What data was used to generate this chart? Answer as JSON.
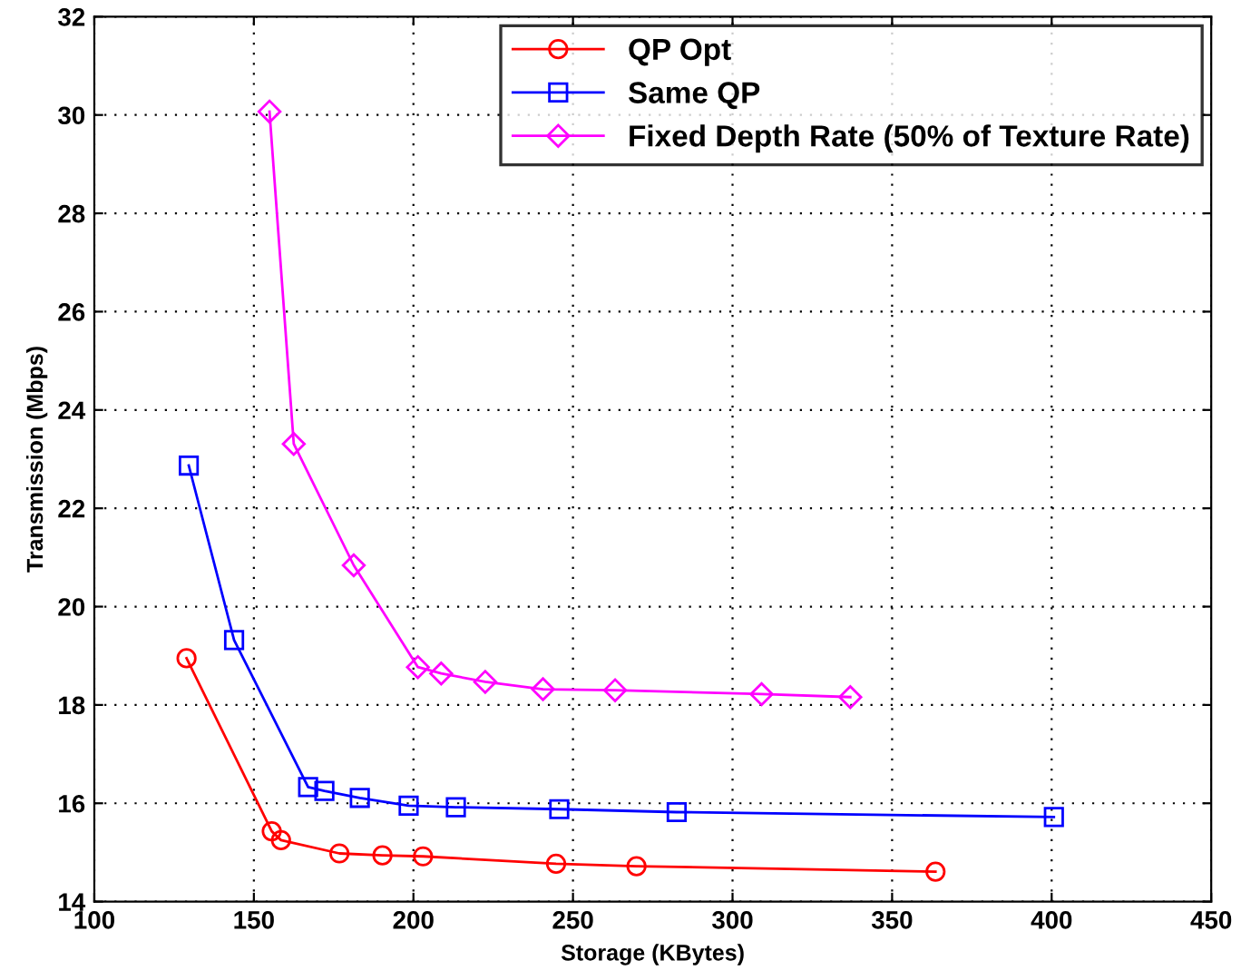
{
  "chart_data": {
    "type": "line",
    "xlabel": "Storage (KBytes)",
    "ylabel": "Transmission (Mbps)",
    "xlim": [
      100,
      450
    ],
    "xticks": [
      100,
      150,
      200,
      250,
      300,
      350,
      400,
      450
    ],
    "ylim": [
      14,
      32
    ],
    "yticks": [
      14,
      16,
      18,
      20,
      22,
      24,
      26,
      28,
      30,
      32
    ],
    "grid": true,
    "legend": "top right",
    "line_style": "solid",
    "series": [
      {
        "name": "QP Opt",
        "color": "#ff0000",
        "marker": "circle",
        "x": [
          128.9,
          155.6,
          158.5,
          176.8,
          190.3,
          203,
          244.7,
          269.9,
          363.6
        ],
        "values": [
          18.95,
          15.43,
          15.25,
          14.98,
          14.94,
          14.92,
          14.77,
          14.72,
          14.61
        ]
      },
      {
        "name": "Same QP",
        "color": "#0000ff",
        "marker": "square",
        "x": [
          129.6,
          143.8,
          167,
          172.1,
          183.2,
          198.5,
          213.3,
          245.7,
          282.5,
          400.7
        ],
        "values": [
          22.87,
          19.32,
          16.33,
          16.25,
          16.11,
          15.95,
          15.92,
          15.88,
          15.82,
          15.72
        ]
      },
      {
        "name": "Fixed Depth Rate (50% of Texture Rate)",
        "color": "#ff00ff",
        "marker": "diamond",
        "x": [
          154.9,
          162.5,
          181.3,
          201.4,
          208.7,
          222.5,
          240.6,
          263.2,
          309.1,
          336.9
        ],
        "values": [
          30.07,
          23.31,
          20.84,
          18.77,
          18.64,
          18.47,
          18.32,
          18.3,
          18.22,
          18.16
        ]
      }
    ]
  }
}
